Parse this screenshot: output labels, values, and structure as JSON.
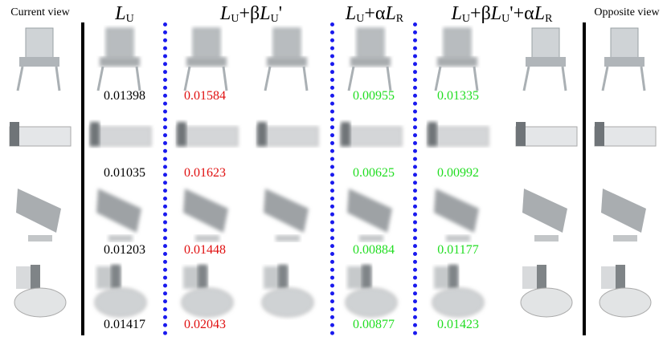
{
  "headers": {
    "current_view": "Current view",
    "opposite_view": "Opposite view",
    "columns": [
      {
        "parts": [
          "L",
          "U"
        ]
      },
      {
        "parts": [
          "L",
          "U",
          "+β",
          "L",
          "U",
          "'"
        ]
      },
      {
        "parts": [
          "L",
          "U",
          "+α",
          "L",
          "R"
        ]
      },
      {
        "parts": [
          "L",
          "U",
          "+β",
          "L",
          "U",
          "'+α",
          "L",
          "R"
        ]
      }
    ]
  },
  "rows": [
    [
      "0.01398",
      "0.01584",
      "0.00955",
      "0.01335"
    ],
    [
      "0.01035",
      "0.01623",
      "0.00625",
      "0.00992"
    ],
    [
      "0.01203",
      "0.01448",
      "0.00884",
      "0.01177"
    ],
    [
      "0.01417",
      "0.02043",
      "0.00877",
      "0.01423"
    ]
  ]
}
